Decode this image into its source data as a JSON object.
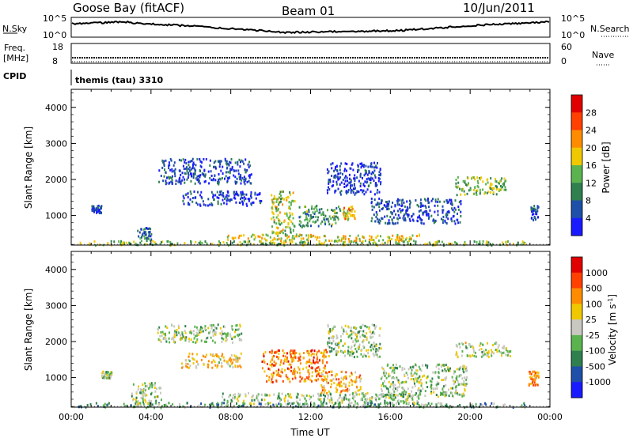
{
  "header": {
    "station": "Goose Bay (fitACF)",
    "beam": "Beam 01",
    "date": "10/Jun/2011"
  },
  "status_panels": {
    "nsky_label": "N.Sky",
    "nsky_ticks": [
      "10^5",
      "10^0"
    ],
    "nsearch_label": "N.Search",
    "nsearch_ticks": [
      "10^5",
      "10^0"
    ],
    "freq_label": "Freq.",
    "freq_unit": "[MHz]",
    "freq_ticks": [
      "18",
      "8"
    ],
    "nave_label": "Nave",
    "nave_ticks": [
      "60",
      "0"
    ],
    "cpid_label": "CPID",
    "cpid_value": "themis (tau) 3310"
  },
  "chart_data": [
    {
      "type": "heatmap",
      "name": "power",
      "ylabel": "Slant Range [km]",
      "colorbar_label": "Power [dB]",
      "xlim": [
        "00:00",
        "24:00"
      ],
      "ylim": [
        180,
        4500
      ],
      "yticks": [
        "1000",
        "2000",
        "3000",
        "4000"
      ],
      "colorbar_ticks": [
        "4",
        "8",
        "12",
        "16",
        "20",
        "24",
        "28"
      ],
      "colors": [
        "#1a1aff",
        "#1f4fa8",
        "#2f7f4f",
        "#5ab34f",
        "#f0c800",
        "#ff8c00",
        "#ff4000",
        "#e00000"
      ],
      "clusters": [
        {
          "t0": 0.3,
          "t1": 22.8,
          "r0": 200,
          "r1": 320,
          "level": 0.45
        },
        {
          "t0": 3.3,
          "t1": 4.0,
          "r0": 300,
          "r1": 700,
          "level": 0.25
        },
        {
          "t0": 7.8,
          "t1": 17.5,
          "r0": 300,
          "r1": 500,
          "level": 0.55
        },
        {
          "t0": 10.0,
          "t1": 11.2,
          "r0": 500,
          "r1": 1700,
          "level": 0.5
        },
        {
          "t0": 11.4,
          "t1": 13.5,
          "r0": 700,
          "r1": 1300,
          "level": 0.35
        },
        {
          "t0": 13.6,
          "t1": 14.2,
          "r0": 900,
          "r1": 1300,
          "level": 0.6
        },
        {
          "t0": 15.0,
          "t1": 19.5,
          "r0": 800,
          "r1": 1500,
          "level": 0.15
        },
        {
          "t0": 4.3,
          "t1": 9.0,
          "r0": 1900,
          "r1": 2600,
          "level": 0.15
        },
        {
          "t0": 5.5,
          "t1": 9.5,
          "r0": 1300,
          "r1": 1700,
          "level": 0.15
        },
        {
          "t0": 12.8,
          "t1": 15.5,
          "r0": 1600,
          "r1": 2500,
          "level": 0.1
        },
        {
          "t0": 19.2,
          "t1": 21.8,
          "r0": 1600,
          "r1": 2100,
          "level": 0.45
        },
        {
          "t0": 23.0,
          "t1": 23.4,
          "r0": 900,
          "r1": 1300,
          "level": 0.15
        },
        {
          "t0": 1.0,
          "t1": 1.5,
          "r0": 1100,
          "r1": 1300,
          "level": 0.15
        }
      ]
    },
    {
      "type": "heatmap",
      "name": "velocity",
      "ylabel": "Slant Range [km]",
      "colorbar_label": "Velocity [m s^-1]",
      "xlabel": "Time UT",
      "xlim": [
        "00:00",
        "24:00"
      ],
      "ylim": [
        180,
        4500
      ],
      "xticks": [
        "00:00",
        "04:00",
        "08:00",
        "12:00",
        "16:00",
        "20:00",
        "00:00"
      ],
      "yticks": [
        "1000",
        "2000",
        "3000",
        "4000"
      ],
      "colorbar_ticks": [
        "1000",
        "500",
        "100",
        "25",
        "-25",
        "-100",
        "-500",
        "-1000"
      ],
      "colors": [
        "#1a1aff",
        "#1f4fa8",
        "#2f7f4f",
        "#5ab34f",
        "#c8c8c0",
        "#f0c800",
        "#ff8c00",
        "#ff4000",
        "#e00000"
      ],
      "clusters": [
        {
          "t0": 0.3,
          "t1": 22.8,
          "r0": 200,
          "r1": 330,
          "level": 0.35
        },
        {
          "t0": 7.5,
          "t1": 17.5,
          "r0": 300,
          "r1": 600,
          "level": 0.45
        },
        {
          "t0": 3.0,
          "t1": 4.5,
          "r0": 180,
          "r1": 900,
          "level": 0.45
        },
        {
          "t0": 4.3,
          "t1": 8.5,
          "r0": 2000,
          "r1": 2500,
          "level": 0.45
        },
        {
          "t0": 5.5,
          "t1": 8.5,
          "r0": 1300,
          "r1": 1700,
          "level": 0.6
        },
        {
          "t0": 9.5,
          "t1": 12.8,
          "r0": 900,
          "r1": 1800,
          "level": 0.75
        },
        {
          "t0": 12.5,
          "t1": 14.5,
          "r0": 600,
          "r1": 1200,
          "level": 0.65
        },
        {
          "t0": 12.8,
          "t1": 15.5,
          "r0": 1600,
          "r1": 2500,
          "level": 0.45
        },
        {
          "t0": 15.5,
          "t1": 19.8,
          "r0": 500,
          "r1": 1400,
          "level": 0.45
        },
        {
          "t0": 19.2,
          "t1": 22.0,
          "r0": 1600,
          "r1": 2000,
          "level": 0.5
        },
        {
          "t0": 22.9,
          "t1": 23.4,
          "r0": 800,
          "r1": 1200,
          "level": 0.72
        },
        {
          "t0": 1.5,
          "t1": 2.0,
          "r0": 1000,
          "r1": 1200,
          "level": 0.45
        }
      ]
    }
  ]
}
